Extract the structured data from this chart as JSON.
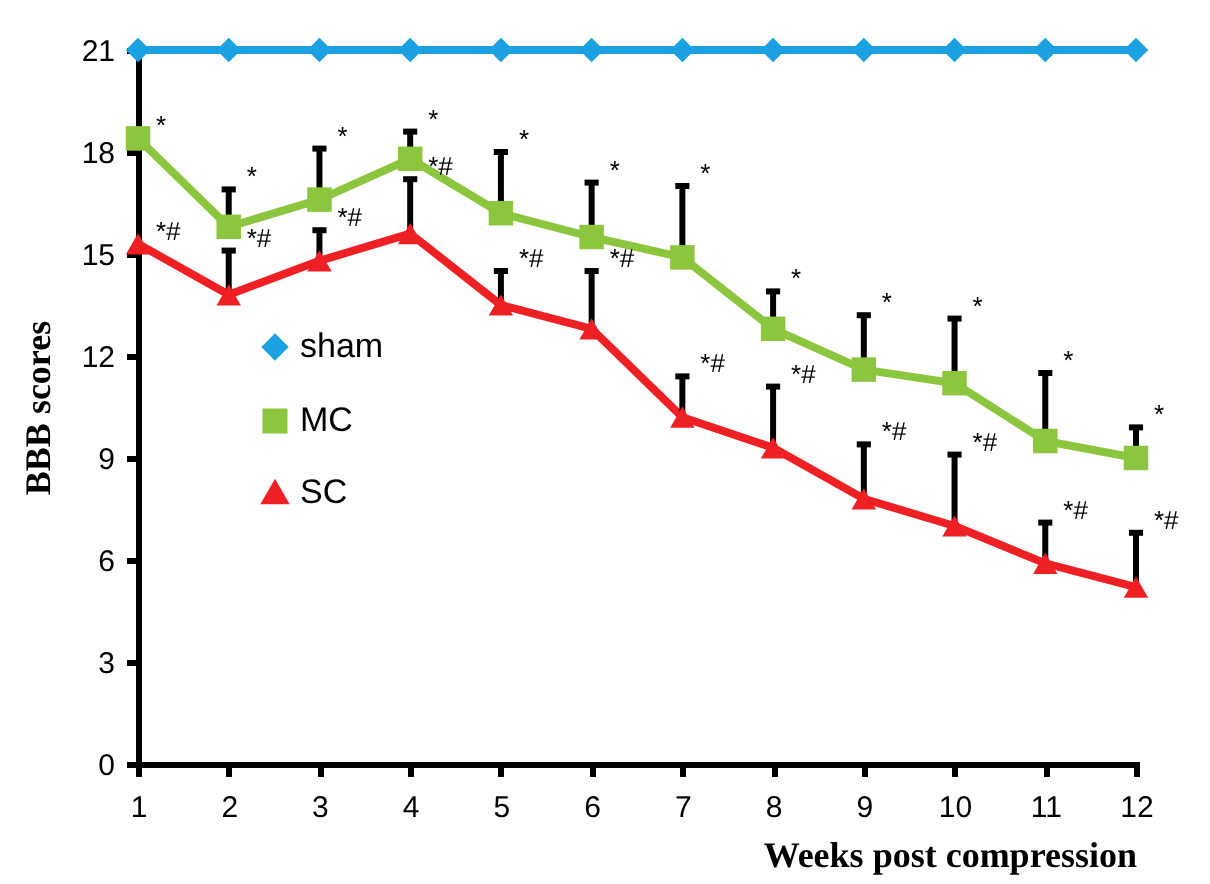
{
  "chart_data": {
    "type": "line",
    "xlabel": "Weeks post compression",
    "ylabel": "BBB scores",
    "x": [
      1,
      2,
      3,
      4,
      5,
      6,
      7,
      8,
      9,
      10,
      11,
      12
    ],
    "xlim": [
      1,
      12
    ],
    "xticks": [
      1,
      2,
      3,
      4,
      5,
      6,
      7,
      8,
      9,
      10,
      11,
      12
    ],
    "ylim": [
      0,
      21
    ],
    "yticks": [
      0,
      3,
      6,
      9,
      12,
      15,
      18,
      21
    ],
    "grid": false,
    "legend": "left",
    "series": [
      {
        "name": "sham",
        "color": "#1ba1e2",
        "marker": "diamond",
        "values": [
          21,
          21,
          21,
          21,
          21,
          21,
          21,
          21,
          21,
          21,
          21,
          21
        ]
      },
      {
        "name": "MC",
        "color": "#8cc63f",
        "marker": "square",
        "values": [
          18.4,
          15.8,
          16.6,
          17.8,
          16.2,
          15.5,
          14.9,
          12.8,
          11.6,
          11.2,
          9.5,
          9.0
        ],
        "errors": [
          null,
          [
            15.8,
            16.9
          ],
          [
            16.6,
            18.1
          ],
          [
            17.8,
            18.6
          ],
          [
            16.2,
            18.0
          ],
          [
            15.5,
            17.1
          ],
          [
            14.9,
            17.0
          ],
          [
            12.8,
            13.9
          ],
          [
            11.6,
            13.2
          ],
          [
            11.2,
            13.1
          ],
          [
            9.5,
            11.5
          ],
          [
            9.0,
            9.9
          ]
        ]
      },
      {
        "name": "SC",
        "color": "#ee2024",
        "marker": "triangle",
        "values": [
          15.3,
          13.8,
          14.8,
          15.6,
          13.5,
          12.8,
          10.2,
          9.3,
          7.8,
          7.0,
          5.9,
          5.2
        ],
        "errors": [
          null,
          [
            13.8,
            15.1
          ],
          [
            14.8,
            15.7
          ],
          [
            15.6,
            17.2
          ],
          [
            13.5,
            14.5
          ],
          [
            12.8,
            14.5
          ],
          [
            10.2,
            11.4
          ],
          [
            9.3,
            11.1
          ],
          [
            7.8,
            9.4
          ],
          [
            7.0,
            9.1
          ],
          [
            5.9,
            7.1
          ],
          [
            5.2,
            6.8
          ]
        ]
      }
    ],
    "annotations": [
      {
        "text": "*",
        "x": 1,
        "y": 18.4
      },
      {
        "text": "*",
        "x": 2,
        "y": 16.9
      },
      {
        "text": "*",
        "x": 3,
        "y": 18.1
      },
      {
        "text": "*",
        "x": 4,
        "y": 18.6
      },
      {
        "text": "*",
        "x": 5,
        "y": 18.0
      },
      {
        "text": "*",
        "x": 6,
        "y": 17.1
      },
      {
        "text": "*",
        "x": 7,
        "y": 17.0
      },
      {
        "text": "*",
        "x": 8,
        "y": 13.9
      },
      {
        "text": "*",
        "x": 9,
        "y": 13.2
      },
      {
        "text": "*",
        "x": 10,
        "y": 13.1
      },
      {
        "text": "*",
        "x": 11,
        "y": 11.5
      },
      {
        "text": "*",
        "x": 12,
        "y": 9.9
      },
      {
        "text": "*#",
        "x": 1,
        "y": 15.3
      },
      {
        "text": "*#",
        "x": 2,
        "y": 15.1
      },
      {
        "text": "*#",
        "x": 3,
        "y": 15.7
      },
      {
        "text": "*#",
        "x": 4,
        "y": 17.2
      },
      {
        "text": "*#",
        "x": 5,
        "y": 14.5
      },
      {
        "text": "*#",
        "x": 6,
        "y": 14.5
      },
      {
        "text": "*#",
        "x": 7,
        "y": 11.4
      },
      {
        "text": "*#",
        "x": 8,
        "y": 11.1
      },
      {
        "text": "*#",
        "x": 9,
        "y": 9.4
      },
      {
        "text": "*#",
        "x": 10,
        "y": 9.1
      },
      {
        "text": "*#",
        "x": 11,
        "y": 7.1
      },
      {
        "text": "*#",
        "x": 12,
        "y": 6.8
      }
    ]
  }
}
